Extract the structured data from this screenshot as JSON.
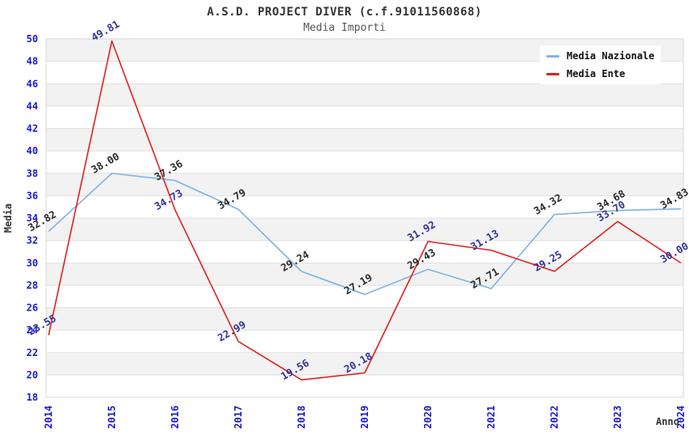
{
  "title": "A.S.D. PROJECT DIVER (c.f.91011560868)",
  "subtitle": "Media Importi",
  "axes": {
    "x_label": "Anno",
    "y_label": "Media"
  },
  "legend": {
    "items": [
      {
        "label": "Media Nazionale",
        "color": "#7EB2E4"
      },
      {
        "label": "Media Ente",
        "color": "#E2201C"
      }
    ]
  },
  "chart_data": {
    "type": "line",
    "title": "A.S.D. PROJECT DIVER (c.f.91011560868)",
    "subtitle": "Media Importi",
    "xlabel": "Anno",
    "ylabel": "Media",
    "categories": [
      "2014",
      "2015",
      "2016",
      "2017",
      "2018",
      "2019",
      "2020",
      "2021",
      "2022",
      "2023",
      "2024"
    ],
    "series": [
      {
        "name": "Media Nazionale",
        "color": "#7EB2E4",
        "label_color": "#2B2B2B",
        "values": [
          32.82,
          38.0,
          37.36,
          34.79,
          29.24,
          27.19,
          29.43,
          27.71,
          34.32,
          34.68,
          34.83
        ]
      },
      {
        "name": "Media Ente",
        "color": "#E2201C",
        "label_color": "#333399",
        "values": [
          23.55,
          49.81,
          34.73,
          22.99,
          19.56,
          20.18,
          31.92,
          31.13,
          29.25,
          33.7,
          30.0
        ]
      }
    ],
    "ylim": [
      18,
      50
    ],
    "ytick_step": 2,
    "yticks": [
      18,
      20,
      22,
      24,
      26,
      28,
      30,
      32,
      34,
      36,
      38,
      40,
      42,
      44,
      46,
      48,
      50
    ],
    "grid": "horizontal gridlines with alternating shaded bands",
    "legend_position": "top-right",
    "tick_label_color": "#1A1ACE",
    "value_label_format": "0.00"
  },
  "colors": {
    "band": "#F2F2F2",
    "gridline": "#E0E0E0",
    "border": "#D6D6D6",
    "title": "#333333",
    "subtitle": "#555555"
  }
}
